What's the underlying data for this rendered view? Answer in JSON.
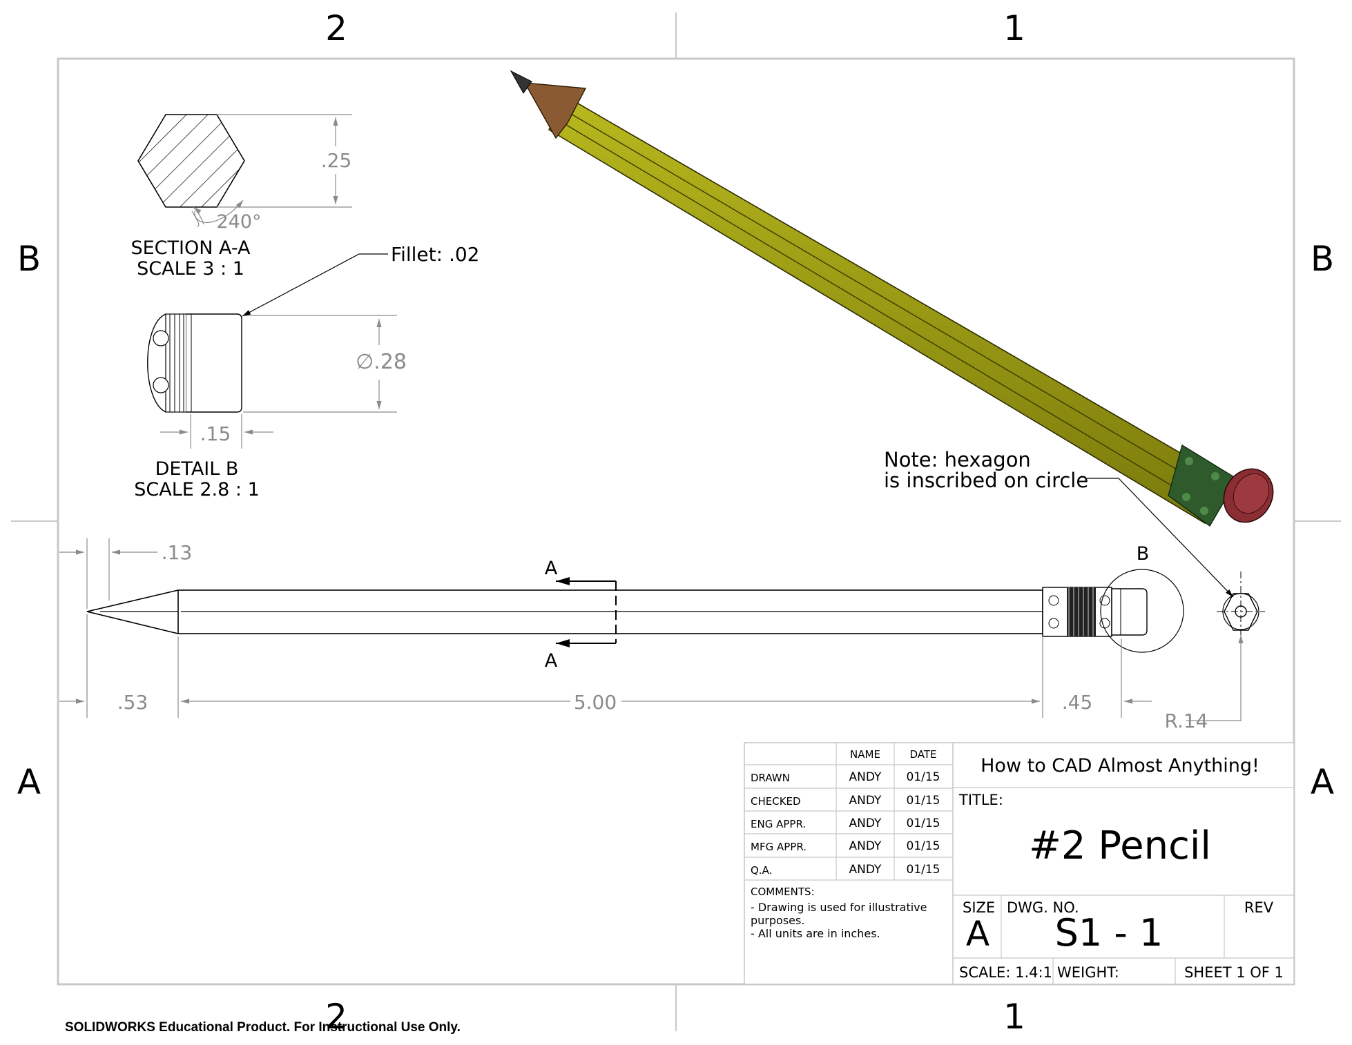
{
  "zone_labels": {
    "top": [
      "2",
      "1"
    ],
    "bottom": [
      "2",
      "1"
    ],
    "left": [
      "B",
      "A"
    ],
    "right": [
      "B",
      "A"
    ]
  },
  "section_view": {
    "label": "SECTION A-A",
    "scale": "SCALE 3 : 1",
    "height_dim": ".25",
    "angle": "240°"
  },
  "detail_view": {
    "label": "DETAIL B",
    "scale": "SCALE 2.8 : 1",
    "fillet": "Fillet: .02",
    "diameter": "∅.28",
    "width_dim": ".15"
  },
  "front_view": {
    "dims": {
      "tip_top": ".13",
      "tip_length": ".53",
      "body_length": "5.00",
      "eraser_length": ".45",
      "radius": "R.14"
    },
    "section_marker": "A",
    "detail_marker": "B",
    "note": [
      "Note: hexagon",
      "is inscribed on circle"
    ]
  },
  "title_block": {
    "col_headers": [
      "NAME",
      "DATE"
    ],
    "rows": [
      {
        "role": "DRAWN",
        "name": "ANDY",
        "date": "01/15"
      },
      {
        "role": "CHECKED",
        "name": "ANDY",
        "date": "01/15"
      },
      {
        "role": "ENG APPR.",
        "name": "ANDY",
        "date": "01/15"
      },
      {
        "role": "MFG APPR.",
        "name": "ANDY",
        "date": "01/15"
      },
      {
        "role": "Q.A.",
        "name": "ANDY",
        "date": "01/15"
      }
    ],
    "comments_label": "COMMENTS:",
    "comments": [
      "- Drawing is used for illustrative",
      "purposes.",
      "- All units are in inches."
    ],
    "company": "How to CAD Almost Anything!",
    "title_label": "TITLE:",
    "title": "#2 Pencil",
    "size_label": "SIZE",
    "size": "A",
    "dwg_label": "DWG.  NO.",
    "dwg_no": "S1 - 1",
    "rev_label": "REV",
    "scale": "SCALE: 1.4:1",
    "weight": "WEIGHT:",
    "sheet": "SHEET 1 OF 1"
  },
  "footer_note": "SOLIDWORKS Educational Product. For Instructional Use Only.",
  "colors": {
    "pencil_body": "#9a9a10",
    "pencil_body_dark": "#6e6e08",
    "wood": "#8a5a32",
    "ferrule": "#2f5a2c",
    "eraser": "#8a2e34",
    "dimension": "#8a8a8a",
    "border": "#c8c8c8"
  }
}
